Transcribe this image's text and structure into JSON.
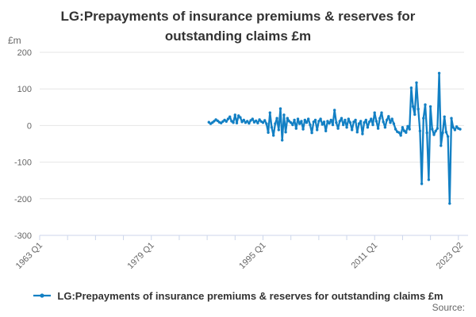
{
  "chart": {
    "title": "LG:Prepayments of insurance premiums & reserves for outstanding claims £m",
    "y_axis": {
      "unit": "£m",
      "ticks": [
        200,
        100,
        0,
        -100,
        -200,
        -300
      ],
      "min": -300,
      "max": 200
    },
    "x_axis": {
      "tick_labels": [
        {
          "label": "1963 Q1",
          "q": 0
        },
        {
          "label": "1979 Q1",
          "q": 64
        },
        {
          "label": "1995 Q1",
          "q": 128
        },
        {
          "label": "2011 Q1",
          "q": 192
        },
        {
          "label": "2023 Q2",
          "q": 241
        }
      ],
      "base_period": "1963 Q1",
      "min_q": 0,
      "max_q": 241,
      "minor_tick_step_quarters": 16
    }
  },
  "chart_data": {
    "type": "line",
    "title": "LG:Prepayments of insurance premiums & reserves for outstanding claims £m",
    "xlabel": "",
    "ylabel": "£m",
    "ylim": [
      -300,
      200
    ],
    "x_range": [
      "1963 Q1",
      "2023 Q2"
    ],
    "grid": true,
    "legend_position": "bottom",
    "series": [
      {
        "name": "LG:Prepayments of insurance premiums & reserves for outstanding claims £m",
        "frequency": "quarterly",
        "start_period": "1987 Q2",
        "end_period": "2023 Q2",
        "values": [
          9,
          5,
          8,
          12,
          16,
          13,
          9,
          7,
          11,
          15,
          11,
          18,
          24,
          12,
          8,
          29,
          7,
          27,
          22,
          10,
          15,
          8,
          12,
          6,
          14,
          18,
          9,
          13,
          7,
          16,
          11,
          8,
          14,
          5,
          -19,
          35,
          -5,
          -27,
          5,
          20,
          -12,
          46,
          -40,
          29,
          -18,
          20,
          12,
          8,
          2,
          15,
          -8,
          18,
          5,
          12,
          -10,
          15,
          8,
          18,
          2,
          -20,
          10,
          15,
          -12,
          12,
          18,
          3,
          10,
          -15,
          12,
          6,
          15,
          2,
          42,
          8,
          -8,
          12,
          20,
          2,
          15,
          -5,
          18,
          8,
          -12,
          10,
          15,
          -18,
          5,
          12,
          -23,
          8,
          15,
          -5,
          10,
          18,
          2,
          35,
          12,
          -8,
          20,
          35,
          10,
          -5,
          15,
          25,
          8,
          18,
          5,
          -10,
          -17,
          -19,
          -27,
          -5,
          -15,
          -19,
          -2,
          -10,
          103,
          52,
          30,
          117,
          45,
          -15,
          -159,
          20,
          57,
          -20,
          -148,
          52,
          -10,
          -25,
          -15,
          -8,
          143,
          -55,
          -20,
          24,
          -18,
          -30,
          -213,
          20,
          -5,
          -12,
          -3,
          -8,
          -10
        ]
      }
    ]
  },
  "legend": {
    "label": "LG:Prepayments of insurance premiums & reserves for outstanding claims £m"
  },
  "footer": {
    "source": "Source:"
  },
  "colors": {
    "series": "#1380c4",
    "grid": "#e6e6e6",
    "axis_line": "#ccd6eb",
    "title_text": "#333333",
    "muted_text": "#666666"
  }
}
